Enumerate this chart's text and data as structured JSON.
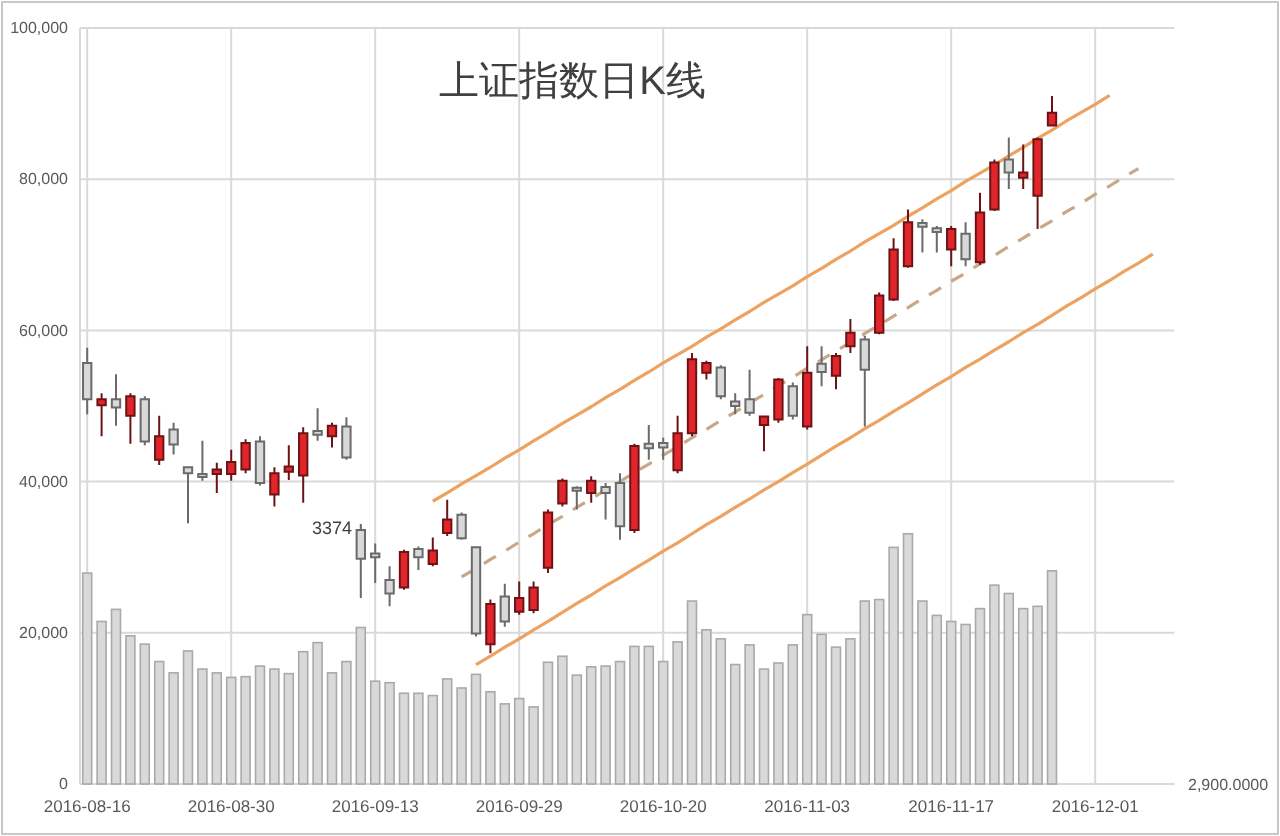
{
  "chart_data": {
    "type": "candlestick",
    "title": "上证指数日K线",
    "categories": [
      "2016-08-16",
      null,
      null,
      null,
      null,
      null,
      null,
      null,
      null,
      null,
      "2016-08-30",
      null,
      null,
      null,
      null,
      null,
      null,
      null,
      null,
      null,
      "2016-09-13",
      null,
      null,
      null,
      null,
      null,
      null,
      null,
      null,
      null,
      "2016-09-29",
      null,
      null,
      null,
      null,
      null,
      null,
      null,
      null,
      null,
      "2016-10-20",
      null,
      null,
      null,
      null,
      null,
      null,
      null,
      null,
      null,
      "2016-11-03",
      null,
      null,
      null,
      null,
      null,
      null,
      null,
      null,
      null,
      "2016-11-17",
      null,
      null,
      null,
      null,
      null,
      null,
      null,
      null,
      null,
      "2016-12-01",
      null,
      null,
      null,
      null,
      null
    ],
    "ylim": [
      0,
      100000
    ],
    "yticks": [
      0,
      {
        "value": 20000,
        "label": "20,000"
      },
      {
        "value": 40000,
        "label": "40,000"
      },
      {
        "value": 60000,
        "label": "60,000"
      },
      {
        "value": 80000,
        "label": "80,000"
      },
      {
        "value": 100000,
        "label": "100,000"
      }
    ],
    "grid": true,
    "ohlc": [
      [
        55700,
        57700,
        48900,
        50900
      ],
      [
        50100,
        51700,
        46000,
        50900
      ],
      [
        50900,
        54200,
        47400,
        49800
      ],
      [
        48700,
        51700,
        45000,
        51300
      ],
      [
        50900,
        51300,
        44800,
        45300
      ],
      [
        42900,
        48700,
        42200,
        46000
      ],
      [
        46900,
        47800,
        43600,
        44900
      ],
      [
        41900,
        42000,
        34500,
        41100
      ],
      [
        41000,
        45400,
        40100,
        40600
      ],
      [
        41000,
        42500,
        38500,
        41600
      ],
      [
        41000,
        44200,
        40100,
        42600
      ],
      [
        41600,
        45600,
        41100,
        45100
      ],
      [
        45300,
        46000,
        39500,
        39800
      ],
      [
        38300,
        41900,
        36700,
        41100
      ],
      [
        41300,
        44800,
        40200,
        42000
      ],
      [
        40800,
        47200,
        37200,
        46400
      ],
      [
        46700,
        49700,
        45400,
        46200
      ],
      [
        46000,
        47800,
        44500,
        47400
      ],
      [
        47300,
        48500,
        42900,
        43200
      ],
      [
        33600,
        34400,
        24600,
        29800
      ],
      [
        30500,
        31800,
        26600,
        30000
      ],
      [
        27000,
        28800,
        23500,
        25200
      ],
      [
        26000,
        31000,
        25700,
        30700
      ],
      [
        31100,
        31400,
        28300,
        30000
      ],
      [
        29100,
        32600,
        28800,
        30900
      ],
      [
        33200,
        37600,
        32800,
        35000
      ],
      [
        35600,
        35900,
        32300,
        32500
      ],
      [
        31300,
        31400,
        19500,
        19900
      ],
      [
        18500,
        24400,
        17300,
        23800
      ],
      [
        24800,
        26500,
        20800,
        21500
      ],
      [
        22800,
        26800,
        22400,
        24600
      ],
      [
        23000,
        26800,
        22600,
        26000
      ],
      [
        28600,
        36300,
        27900,
        35900
      ],
      [
        37100,
        40400,
        36700,
        40100
      ],
      [
        39200,
        39400,
        36300,
        38800
      ],
      [
        38500,
        40700,
        37200,
        40100
      ],
      [
        39300,
        39800,
        35000,
        38500
      ],
      [
        39800,
        41100,
        32300,
        34100
      ],
      [
        33600,
        45000,
        33200,
        44700
      ],
      [
        45000,
        47500,
        42900,
        44400
      ],
      [
        45100,
        45800,
        42900,
        44500
      ],
      [
        41500,
        48700,
        41100,
        46400
      ],
      [
        46400,
        57000,
        46000,
        56200
      ],
      [
        54400,
        56000,
        53500,
        55700
      ],
      [
        55100,
        55400,
        50900,
        51300
      ],
      [
        50600,
        51700,
        48900,
        50000
      ],
      [
        50900,
        54800,
        48700,
        49100
      ],
      [
        47500,
        48700,
        44000,
        48600
      ],
      [
        48200,
        53700,
        47800,
        53500
      ],
      [
        52600,
        53100,
        48200,
        48700
      ],
      [
        47300,
        57900,
        46900,
        54400
      ],
      [
        55600,
        57900,
        52600,
        54500
      ],
      [
        54000,
        57000,
        52200,
        56600
      ],
      [
        57900,
        61500,
        57000,
        59700
      ],
      [
        58800,
        59300,
        47300,
        54800
      ],
      [
        59700,
        65000,
        59500,
        64600
      ],
      [
        64100,
        72200,
        63900,
        70700
      ],
      [
        68500,
        76000,
        68300,
        74300
      ],
      [
        74200,
        74700,
        70300,
        73700
      ],
      [
        73500,
        73800,
        70300,
        73000
      ],
      [
        70700,
        73800,
        68500,
        73400
      ],
      [
        72800,
        74300,
        68500,
        69400
      ],
      [
        69000,
        78200,
        68700,
        75600
      ],
      [
        76000,
        82600,
        75800,
        82200
      ],
      [
        82600,
        85500,
        78700,
        80900
      ],
      [
        80200,
        84600,
        78700,
        80900
      ],
      [
        77800,
        85500,
        73400,
        85300
      ],
      [
        87100,
        91000,
        87100,
        88800
      ],
      null,
      null,
      null,
      null,
      null,
      null,
      null,
      null
    ],
    "colors": [
      "#d9d9d9",
      "#e0262b",
      "#d9d9d9",
      "#e0262b",
      "#d9d9d9",
      "#e0262b",
      "#d9d9d9",
      "#d9d9d9",
      "#d9d9d9",
      "#e0262b",
      "#e0262b",
      "#e0262b",
      "#d9d9d9",
      "#e0262b",
      "#e0262b",
      "#e0262b",
      "#d9d9d9",
      "#e0262b",
      "#d9d9d9",
      "#d9d9d9",
      "#d9d9d9",
      "#d9d9d9",
      "#e0262b",
      "#d9d9d9",
      "#e0262b",
      "#e0262b",
      "#d9d9d9",
      "#d9d9d9",
      "#e0262b",
      "#d9d9d9",
      "#e0262b",
      "#e0262b",
      "#e0262b",
      "#e0262b",
      "#d9d9d9",
      "#e0262b",
      "#d9d9d9",
      "#d9d9d9",
      "#e0262b",
      "#d9d9d9",
      "#d9d9d9",
      "#e0262b",
      "#e0262b",
      "#e0262b",
      "#d9d9d9",
      "#d9d9d9",
      "#d9d9d9",
      "#e0262b",
      "#e0262b",
      "#d9d9d9",
      "#e0262b",
      "#d9d9d9",
      "#e0262b",
      "#e0262b",
      "#d9d9d9",
      "#e0262b",
      "#e0262b",
      "#e0262b",
      "#d9d9d9",
      "#d9d9d9",
      "#e0262b",
      "#d9d9d9",
      "#e0262b",
      "#e0262b",
      "#d9d9d9",
      "#e0262b",
      "#e0262b",
      "#e0262b",
      null,
      null,
      null,
      null,
      null,
      null,
      null,
      null
    ],
    "series": [
      {
        "type": "bar",
        "color": "#d9d9d9",
        "values": [
          27900,
          21500,
          23100,
          19600,
          18500,
          16200,
          14700,
          17600,
          15200,
          14700,
          14100,
          14200,
          15600,
          15200,
          14600,
          17500,
          18700,
          14700,
          16200,
          20700,
          13600,
          13400,
          12000,
          12000,
          11700,
          13900,
          12700,
          14500,
          12200,
          10600,
          11300,
          10200,
          16100,
          16900,
          14400,
          15500,
          15600,
          16200,
          18200,
          18200,
          16200,
          18800,
          24200,
          20400,
          19200,
          15800,
          18400,
          15200,
          16000,
          18400,
          22400,
          19800,
          18100,
          19200,
          24200,
          24400,
          31300,
          33100,
          24200,
          22300,
          21500,
          21100,
          23200,
          26300,
          25200,
          23200,
          23500,
          28200,
          null,
          null,
          null,
          null,
          null,
          null,
          null,
          null
        ]
      },
      {
        "type": "line",
        "color": "#eea262",
        "line_style": "solid",
        "values": [
          null,
          null,
          null,
          null,
          null,
          null,
          null,
          null,
          null,
          null,
          null,
          null,
          null,
          null,
          null,
          null,
          null,
          null,
          null,
          null,
          null,
          null,
          null,
          null,
          37400,
          38500,
          39700,
          40800,
          41900,
          43100,
          44200,
          45400,
          46500,
          47700,
          48800,
          49900,
          51100,
          52200,
          53400,
          54500,
          55700,
          56800,
          57900,
          59100,
          60200,
          61400,
          62500,
          63700,
          64800,
          65900,
          67100,
          68200,
          69400,
          70500,
          71700,
          72800,
          73900,
          75100,
          76200,
          77400,
          78500,
          79700,
          80800,
          81900,
          83100,
          84200,
          85400,
          86500,
          87700,
          88800,
          89900,
          91100,
          null,
          null,
          null,
          null
        ]
      },
      {
        "type": "line",
        "color": "#c9a888",
        "line_style": "dashed",
        "values": [
          null,
          null,
          null,
          null,
          null,
          null,
          null,
          null,
          null,
          null,
          null,
          null,
          null,
          null,
          null,
          null,
          null,
          null,
          null,
          null,
          null,
          null,
          null,
          null,
          null,
          null,
          27400,
          28500,
          29700,
          30800,
          32000,
          33100,
          34300,
          35400,
          36600,
          37700,
          38900,
          40000,
          41200,
          42300,
          43500,
          44600,
          45800,
          46900,
          48100,
          49200,
          50400,
          51500,
          52700,
          53800,
          55000,
          56100,
          57300,
          58400,
          59600,
          60700,
          61900,
          63000,
          64200,
          65300,
          66500,
          67600,
          68800,
          69900,
          71100,
          72200,
          73400,
          74500,
          75700,
          76800,
          78000,
          79100,
          80300,
          81400,
          null,
          null
        ]
      },
      {
        "type": "line",
        "color": "#eea262",
        "line_style": "solid",
        "values": [
          null,
          null,
          null,
          null,
          null,
          null,
          null,
          null,
          null,
          null,
          null,
          null,
          null,
          null,
          null,
          null,
          null,
          null,
          null,
          null,
          null,
          null,
          null,
          null,
          null,
          null,
          null,
          15800,
          16900,
          18100,
          19200,
          20400,
          21500,
          22700,
          23900,
          25000,
          26200,
          27300,
          28500,
          29600,
          30800,
          31900,
          33100,
          34300,
          35400,
          36600,
          37700,
          38900,
          40000,
          41200,
          42300,
          43500,
          44700,
          45800,
          47000,
          48100,
          49300,
          50400,
          51600,
          52800,
          53900,
          55100,
          56200,
          57400,
          58500,
          59700,
          60800,
          62000,
          63200,
          64300,
          65500,
          66600,
          67800,
          68900,
          70100,
          null
        ]
      }
    ],
    "annotations": [
      "3374",
      "2,900.0000"
    ]
  }
}
